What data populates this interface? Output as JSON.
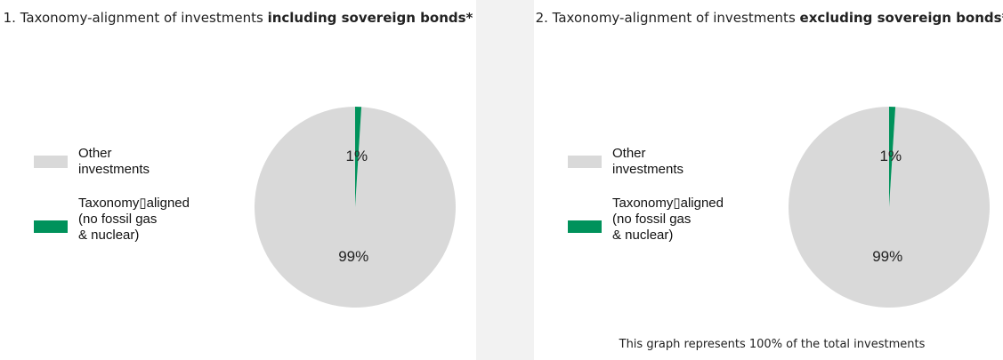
{
  "chart_data": [
    {
      "type": "pie",
      "title": "1. Taxonomy-alignment of investments",
      "title_bold": "including sovereign bonds*",
      "categories": [
        "Other investments",
        "Taxonomy▯aligned (no fossil gas & nuclear)"
      ],
      "values": [
        99,
        1
      ],
      "value_labels": [
        "99%",
        "1%"
      ],
      "colors": [
        "#d9d9d9",
        "#00925b"
      ]
    },
    {
      "type": "pie",
      "title": "2. Taxonomy-alignment of investments",
      "title_bold": "excluding sovereign bonds*",
      "categories": [
        "Other investments",
        "Taxonomy▯aligned (no fossil gas & nuclear)"
      ],
      "values": [
        99,
        1
      ],
      "value_labels": [
        "99%",
        "1%"
      ],
      "colors": [
        "#d9d9d9",
        "#00925b"
      ],
      "note": "This graph represents 100% of the total investments"
    }
  ]
}
